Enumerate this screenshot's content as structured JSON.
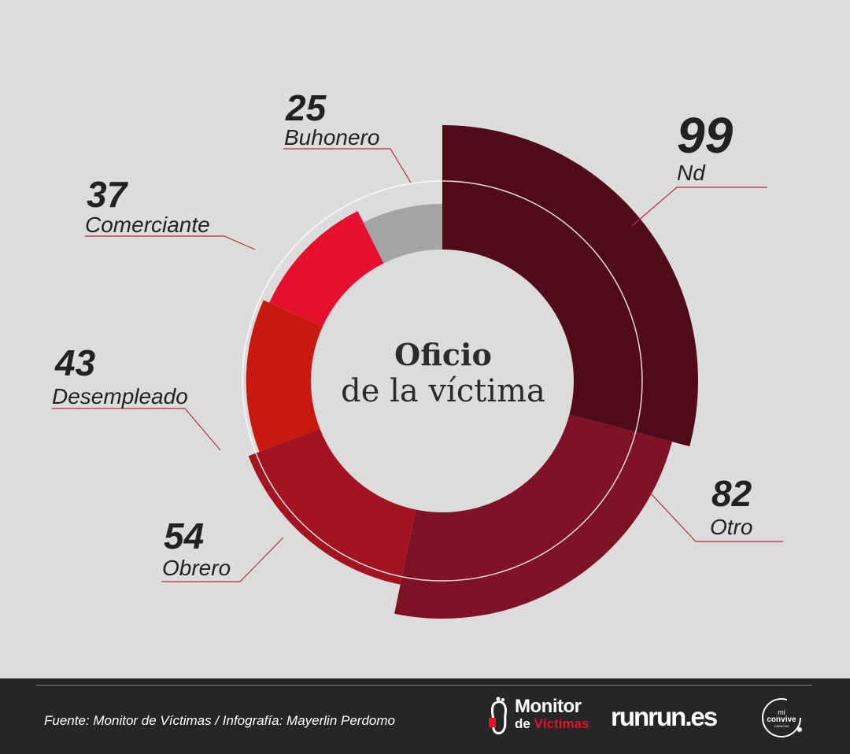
{
  "center": {
    "title_bold": "Oficio",
    "title_sub": "de la víctima"
  },
  "chart_data": {
    "type": "pie",
    "variant": "donut",
    "title": "Oficio de la víctima",
    "categories": [
      "Nd",
      "Otro",
      "Obrero",
      "Desempleado",
      "Comerciante",
      "Buhonero"
    ],
    "values": [
      99,
      82,
      54,
      43,
      37,
      25
    ],
    "labels": [
      {
        "value": "99",
        "name": "Nd"
      },
      {
        "value": "82",
        "name": "Otro"
      },
      {
        "value": "54",
        "name": "Obrero"
      },
      {
        "value": "43",
        "name": "Desempleado"
      },
      {
        "value": "37",
        "name": "Comerciante"
      },
      {
        "value": "25",
        "name": "Buhonero"
      }
    ],
    "colors": [
      "#4f0a1c",
      "#7d1325",
      "#a31422",
      "#c8190f",
      "#e5102e",
      "#a4a4a4"
    ],
    "leader_line_color": "#b0303f"
  },
  "footer": {
    "source": "Fuente: Monitor de Víctimas / Infografía: Mayerlin Perdomo",
    "logo_monitor_line1": "Monitor",
    "logo_monitor_de": "de",
    "logo_monitor_victimas": "Víctimas",
    "logo_runrunes": "runrun.es",
    "logo_miconvive": "mi convive CARACAS"
  }
}
